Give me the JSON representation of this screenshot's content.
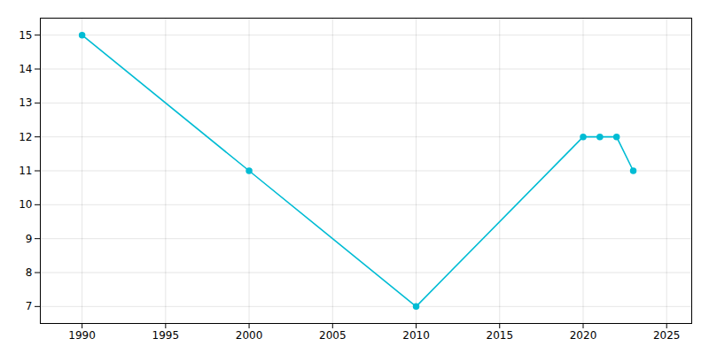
{
  "chart_data": {
    "type": "line",
    "x": [
      1990,
      2000,
      2010,
      2020,
      2021,
      2022,
      2023
    ],
    "values": [
      15,
      11,
      7,
      12,
      12,
      12,
      11
    ],
    "color": "#00bcd4",
    "marker": "circle",
    "xlim": [
      1987.5,
      2026.5
    ],
    "ylim": [
      6.5,
      15.5
    ],
    "xticks": [
      1990,
      1995,
      2000,
      2005,
      2010,
      2015,
      2020,
      2025
    ],
    "yticks": [
      7,
      8,
      9,
      10,
      11,
      12,
      13,
      14,
      15
    ],
    "grid": true
  }
}
